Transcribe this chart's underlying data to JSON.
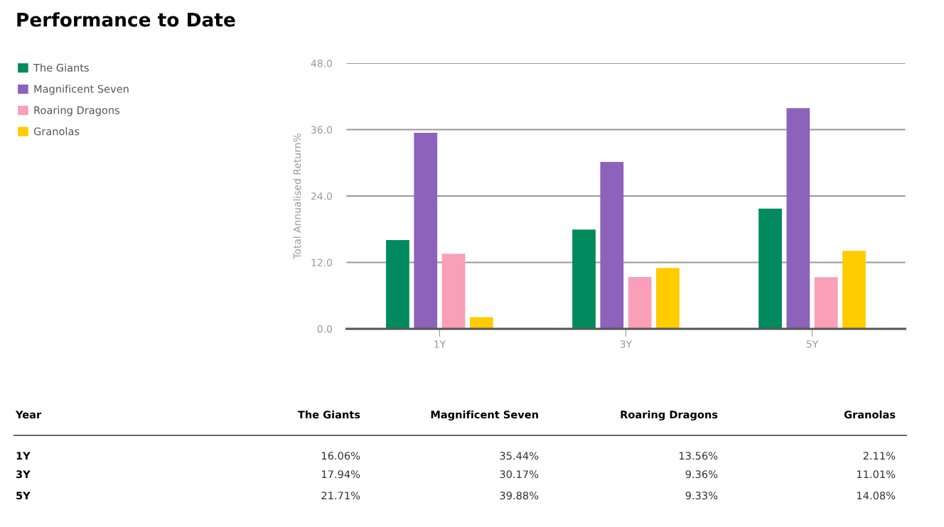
{
  "chart_data": {
    "type": "bar",
    "title": "Performance to Date",
    "ylabel": "Total Annualised Return%",
    "categories": [
      "1Y",
      "3Y",
      "5Y"
    ],
    "series": [
      {
        "name": "The Giants",
        "color": "#008a5e",
        "values": [
          16.06,
          17.94,
          21.71
        ]
      },
      {
        "name": "Magnificent Seven",
        "color": "#8c62bb",
        "values": [
          35.44,
          30.17,
          39.88
        ]
      },
      {
        "name": "Roaring Dragons",
        "color": "#f99fb8",
        "values": [
          13.56,
          9.36,
          9.33
        ]
      },
      {
        "name": "Granolas",
        "color": "#ffcc00",
        "values": [
          2.11,
          11.01,
          14.08
        ]
      }
    ],
    "ylim": [
      0,
      48
    ],
    "yticks": [
      {
        "value": 0,
        "label": "0.0"
      },
      {
        "value": 12,
        "label": "12.0"
      },
      {
        "value": 24,
        "label": "24.0"
      },
      {
        "value": 36,
        "label": "36.0"
      },
      {
        "value": 48,
        "label": "48.0"
      }
    ],
    "grid": "y",
    "legend": "top left",
    "annotations": [
      "Year",
      "16.06%",
      "35.44%",
      "13.56%",
      "2.11%",
      "17.94%",
      "30.17%",
      "9.36%",
      "11.01%",
      "21.71%",
      "39.88%",
      "9.33%",
      "14.08%"
    ]
  }
}
